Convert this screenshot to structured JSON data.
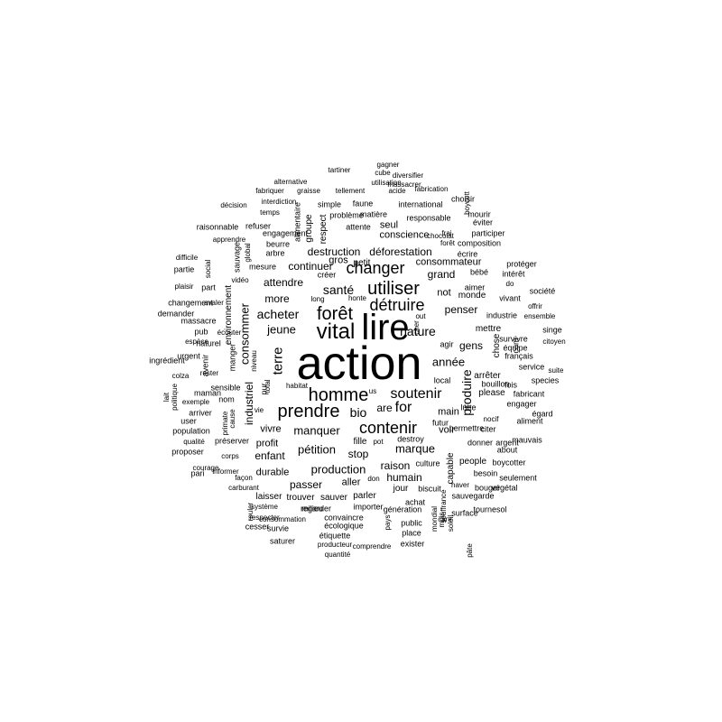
{
  "cloud": {
    "text_color": "#000000",
    "background": "#ffffff",
    "words": [
      "action",
      "lire",
      "vital",
      "forêt",
      "détruire",
      "homme",
      "soutenir",
      "prendre",
      "contenir",
      "utiliser",
      "changer",
      "for",
      "bio",
      "nature",
      "santé",
      "acheter",
      "jeune",
      "manquer",
      "marque",
      "terre",
      "produire",
      "année",
      "pétition",
      "production",
      "consommer",
      "industriel",
      "attendre",
      "more",
      "continuer",
      "déforestation",
      "destruction",
      "consommateur",
      "grand",
      "penser",
      "gens",
      "stop",
      "are",
      "main",
      "humain",
      "voir",
      "raison",
      "fille",
      "passer",
      "aller",
      "enfant",
      "profit",
      "vivre",
      "durable",
      "parler",
      "sauver",
      "trouver",
      "laisser",
      "conscience",
      "seul",
      "gros",
      "petit",
      "respect",
      "groupe",
      "alimentaire",
      "environnement",
      "responsable",
      "international",
      "not",
      "monde",
      "capable",
      "people",
      "donner",
      "jour",
      "public",
      "biscuit",
      "local",
      "please",
      "arrêter",
      "bouillon",
      "mettre",
      "agir",
      "chose",
      "com",
      "choisir",
      "mourir",
      "éviter",
      "participer",
      "composition",
      "écrire",
      "bébé",
      "intérêt",
      "protéger",
      "aimer",
      "vivant",
      "industrie",
      "ensemble",
      "offrir",
      "société",
      "singe",
      "citoyen",
      "survivre",
      "équipe",
      "français",
      "service",
      "suite",
      "fabricant",
      "species",
      "fois",
      "engager",
      "égard",
      "aliment",
      "mauvais",
      "about",
      "boycotter",
      "seulement",
      "végétal",
      "tournesol",
      "surface",
      "pâte",
      "sauvegarde",
      "bouger",
      "besoin",
      "argent",
      "citer",
      "permettre",
      "nocif",
      "lutte",
      "futur",
      "culture",
      "destroy",
      "achat",
      "génération",
      "pays",
      "place",
      "exister",
      "comprendre",
      "quantité",
      "producteur",
      "étiquette",
      "écologique",
      "convaincre",
      "importer",
      "regarder",
      "milieu",
      "consommation",
      "survie",
      "saturer",
      "respecter",
      "cesser",
      "système",
      "rouler",
      "façon",
      "carburant",
      "informer",
      "corps",
      "préserver",
      "qualité",
      "proposer",
      "courage",
      "pari",
      "population",
      "user",
      "arriver",
      "maman",
      "nom",
      "exemple",
      "sensible",
      "rester",
      "avenir",
      "ingrédient",
      "urgent",
      "naturel",
      "espèce",
      "écouter",
      "pub",
      "massacre",
      "demander",
      "changement",
      "avaler",
      "part",
      "plaisir",
      "partie",
      "difficile",
      "apprendre",
      "raisonnable",
      "refuser",
      "engagement",
      "sauvage",
      "global",
      "social",
      "mesure",
      "arbre",
      "beurre",
      "vidéo",
      "créer",
      "long",
      "honte",
      "out",
      "cher",
      "lait",
      "politique",
      "colza",
      "primate",
      "cause",
      "vie",
      "pur",
      "total",
      "niveau",
      "manger",
      "haver",
      "mois",
      "soleil",
      "mondial",
      "souffrance",
      "care",
      "frai",
      "forêt",
      "chocolat",
      "gagner",
      "cube",
      "diversifier",
      "massacrer",
      "utilisation",
      "tartiner",
      "alternative",
      "graisse",
      "tellement",
      "acide",
      "fabrication",
      "interdiction",
      "fabriquer",
      "décision",
      "temps",
      "simple",
      "faune",
      "problème",
      "matière",
      "attente",
      "boycott",
      "do",
      "us",
      "pot",
      "don",
      "habitat"
    ]
  }
}
